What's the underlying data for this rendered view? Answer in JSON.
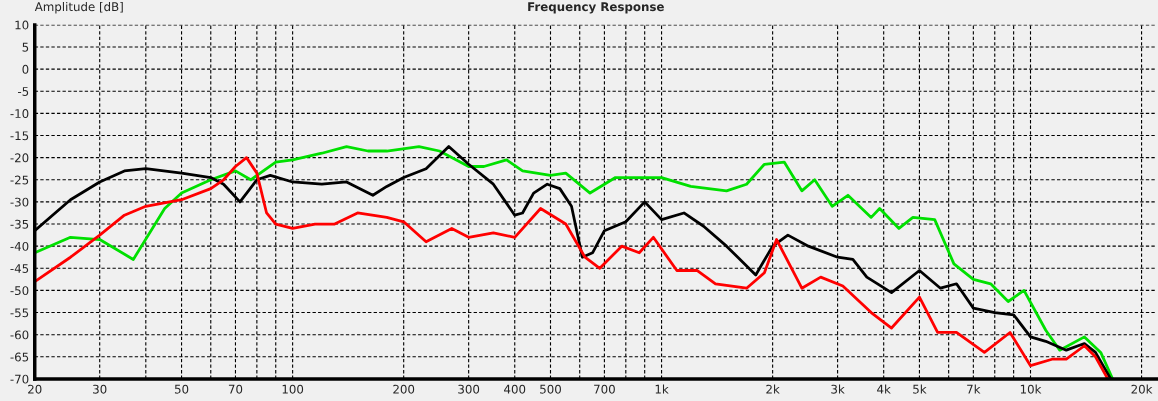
{
  "chart_data": {
    "type": "line",
    "title": "Frequency Response",
    "ylabel": "Amplitude [dB]",
    "log": "x",
    "grid": true,
    "marker": "none",
    "line_style": "solid",
    "xlim": [
      20,
      22000
    ],
    "ylim": [
      -70,
      10
    ],
    "xticks": [
      20,
      30,
      {
        "value": 40,
        "label": null
      },
      50,
      {
        "value": 60,
        "label": null
      },
      70,
      {
        "value": 80,
        "label": null
      },
      {
        "value": 90,
        "label": null
      },
      100,
      200,
      300,
      400,
      500,
      {
        "value": 600,
        "label": null
      },
      700,
      {
        "value": 800,
        "label": null
      },
      {
        "value": 900,
        "label": null
      },
      {
        "value": 1000,
        "label": "1k"
      },
      {
        "value": 2000,
        "label": "2k"
      },
      {
        "value": 3000,
        "label": "3k"
      },
      {
        "value": 4000,
        "label": "4k"
      },
      {
        "value": 5000,
        "label": "5k"
      },
      {
        "value": 6000,
        "label": null
      },
      {
        "value": 7000,
        "label": "7k"
      },
      {
        "value": 8000,
        "label": null
      },
      {
        "value": 9000,
        "label": null
      },
      {
        "value": 10000,
        "label": "10k"
      },
      {
        "value": 20000,
        "label": "20k"
      }
    ],
    "yticks": [
      -70,
      -65,
      -60,
      -55,
      -50,
      -45,
      -40,
      -35,
      -30,
      -25,
      -20,
      -15,
      -10,
      -5,
      0,
      5,
      10
    ],
    "series": [
      {
        "color": "#00e000",
        "x": [
          20,
          25,
          30,
          37,
          45,
          50,
          60,
          70,
          77,
          90,
          100,
          120,
          140,
          160,
          180,
          220,
          250,
          300,
          330,
          380,
          420,
          500,
          550,
          640,
          750,
          1000,
          1200,
          1500,
          1700,
          1900,
          2150,
          2400,
          2600,
          2900,
          3200,
          3700,
          3900,
          4400,
          4800,
          5500,
          6200,
          7000,
          7800,
          8700,
          9600,
          11000,
          12000,
          14000,
          15500,
          16700
        ],
        "values": [
          -41.5,
          -38,
          -38.5,
          -43,
          -31.5,
          -28,
          -25,
          -23,
          -25,
          -21,
          -20.5,
          -19,
          -17.5,
          -18.5,
          -18.5,
          -17.5,
          -18.5,
          -22,
          -22,
          -20.5,
          -23,
          -24,
          -23.5,
          -28,
          -24.5,
          -24.5,
          -26.5,
          -27.5,
          -26,
          -21.5,
          -21,
          -27.5,
          -25,
          -31,
          -28.5,
          -33.5,
          -31.5,
          -36,
          -33.5,
          -34,
          -44,
          -47.5,
          -48.5,
          -52.5,
          -50,
          -59,
          -63.5,
          -60.5,
          -64,
          -70
        ]
      },
      {
        "color": "#000000",
        "x": [
          20,
          25,
          30,
          35,
          40,
          50,
          60,
          65,
          72,
          80,
          87,
          100,
          120,
          140,
          165,
          180,
          200,
          230,
          265,
          300,
          350,
          400,
          420,
          450,
          490,
          530,
          570,
          610,
          650,
          700,
          800,
          900,
          1000,
          1150,
          1300,
          1500,
          1800,
          2000,
          2200,
          2500,
          3000,
          3300,
          3600,
          4200,
          5000,
          5700,
          6300,
          7000,
          8000,
          9000,
          10000,
          11000,
          12500,
          14000,
          15000,
          16500
        ],
        "values": [
          -36.5,
          -29.5,
          -25.5,
          -23,
          -22.5,
          -23.5,
          -24.5,
          -26,
          -30,
          -25,
          -24,
          -25.5,
          -26,
          -25.5,
          -28.5,
          -26.5,
          -24.5,
          -22.5,
          -17.5,
          -21.5,
          -26,
          -33,
          -32.5,
          -28,
          -26,
          -27,
          -31,
          -42.5,
          -41.5,
          -36.5,
          -34.5,
          -30,
          -34,
          -32.5,
          -35.5,
          -40,
          -46.5,
          -40,
          -37.5,
          -40,
          -42.5,
          -43,
          -47,
          -50.5,
          -45.5,
          -49.5,
          -48.5,
          -54,
          -55,
          -55.5,
          -60.5,
          -61.5,
          -63.5,
          -62,
          -64,
          -70
        ]
      },
      {
        "color": "#ff0000",
        "x": [
          20,
          25,
          30,
          35,
          40,
          50,
          60,
          65,
          70,
          75,
          80,
          85,
          90,
          100,
          115,
          130,
          150,
          180,
          200,
          230,
          270,
          300,
          350,
          400,
          470,
          550,
          620,
          680,
          780,
          870,
          950,
          1100,
          1250,
          1400,
          1700,
          1900,
          2050,
          2400,
          2700,
          3100,
          3700,
          4200,
          5000,
          5600,
          6300,
          7500,
          8800,
          10000,
          11500,
          12500,
          14000,
          15000,
          16200
        ],
        "values": [
          -48,
          -42.5,
          -37.5,
          -33,
          -31,
          -29.5,
          -27,
          -25,
          -22,
          -20,
          -23.5,
          -32.5,
          -35,
          -36,
          -35,
          -35,
          -32.5,
          -33.5,
          -34.5,
          -39,
          -36,
          -38,
          -37,
          -38,
          -31.5,
          -35,
          -42.5,
          -45,
          -40,
          -41.5,
          -38,
          -45.5,
          -45.5,
          -48.5,
          -49.5,
          -46,
          -38.5,
          -49.5,
          -47,
          -49,
          -55,
          -58.5,
          -51.5,
          -59.5,
          -59.5,
          -64,
          -59.5,
          -67,
          -65.5,
          -65.5,
          -62.5,
          -65,
          -70
        ]
      }
    ]
  }
}
